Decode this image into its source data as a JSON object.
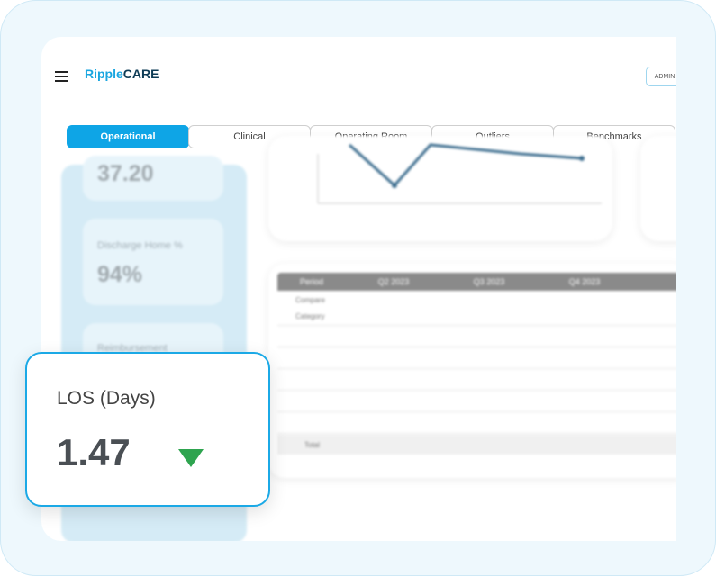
{
  "header": {
    "logo_prefix": "Ripple",
    "logo_suffix": "CARE",
    "user": "ADMIN"
  },
  "tabs": [
    "Operational",
    "Clinical",
    "Operating Room",
    "Outliers",
    "Benchmarks"
  ],
  "cards": [
    {
      "value": "37.20"
    },
    {
      "label": "Discharge Home %",
      "value": "94%"
    },
    {
      "label": "Reimbursement"
    }
  ],
  "highlight": {
    "label": "LOS (Days)",
    "value": "1.47"
  },
  "table": {
    "header": [
      "Period",
      "Q2 2023",
      "Q3 2023",
      "Q4 2023"
    ],
    "compare": "Compare",
    "category": "Category",
    "total": "Total"
  }
}
